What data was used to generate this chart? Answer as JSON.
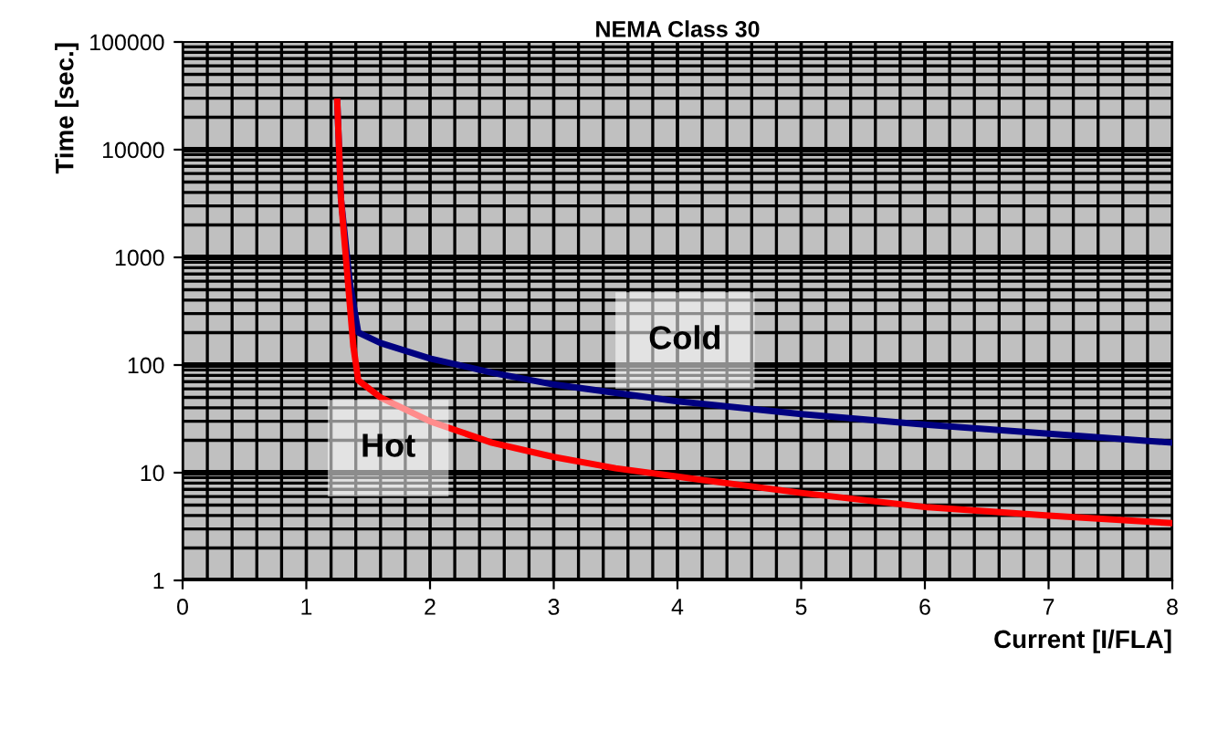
{
  "chart_data": {
    "type": "line",
    "title": "NEMA Class 30",
    "xlabel": "Current [I/FLA]",
    "ylabel": "Time [sec.]",
    "log": "y",
    "xlim": [
      0,
      8
    ],
    "xticks": [
      0,
      1,
      2,
      3,
      4,
      5,
      6,
      7,
      8
    ],
    "ylim": [
      1,
      100000
    ],
    "yticks": [
      1,
      10,
      100,
      1000,
      10000,
      100000
    ],
    "grid": true,
    "marker": "none",
    "line_style": "solid",
    "series": [
      {
        "name": "Cold",
        "color": "#000080",
        "x": [
          1.25,
          1.28,
          1.35,
          1.42,
          1.6,
          2,
          2.5,
          3,
          4,
          5,
          6,
          7,
          8
        ],
        "values": [
          28000,
          3500,
          600,
          200,
          160,
          115,
          85,
          66,
          46,
          35,
          28,
          23,
          19
        ]
      },
      {
        "name": "Hot",
        "color": "#ff0000",
        "x": [
          1.25,
          1.28,
          1.38,
          1.42,
          1.6,
          2,
          2.5,
          3,
          3.5,
          4,
          5,
          6,
          7,
          8
        ],
        "values": [
          28000,
          3500,
          150,
          72,
          50,
          30,
          19,
          14,
          11,
          9.2,
          6.5,
          4.8,
          4.0,
          3.4
        ]
      }
    ]
  }
}
